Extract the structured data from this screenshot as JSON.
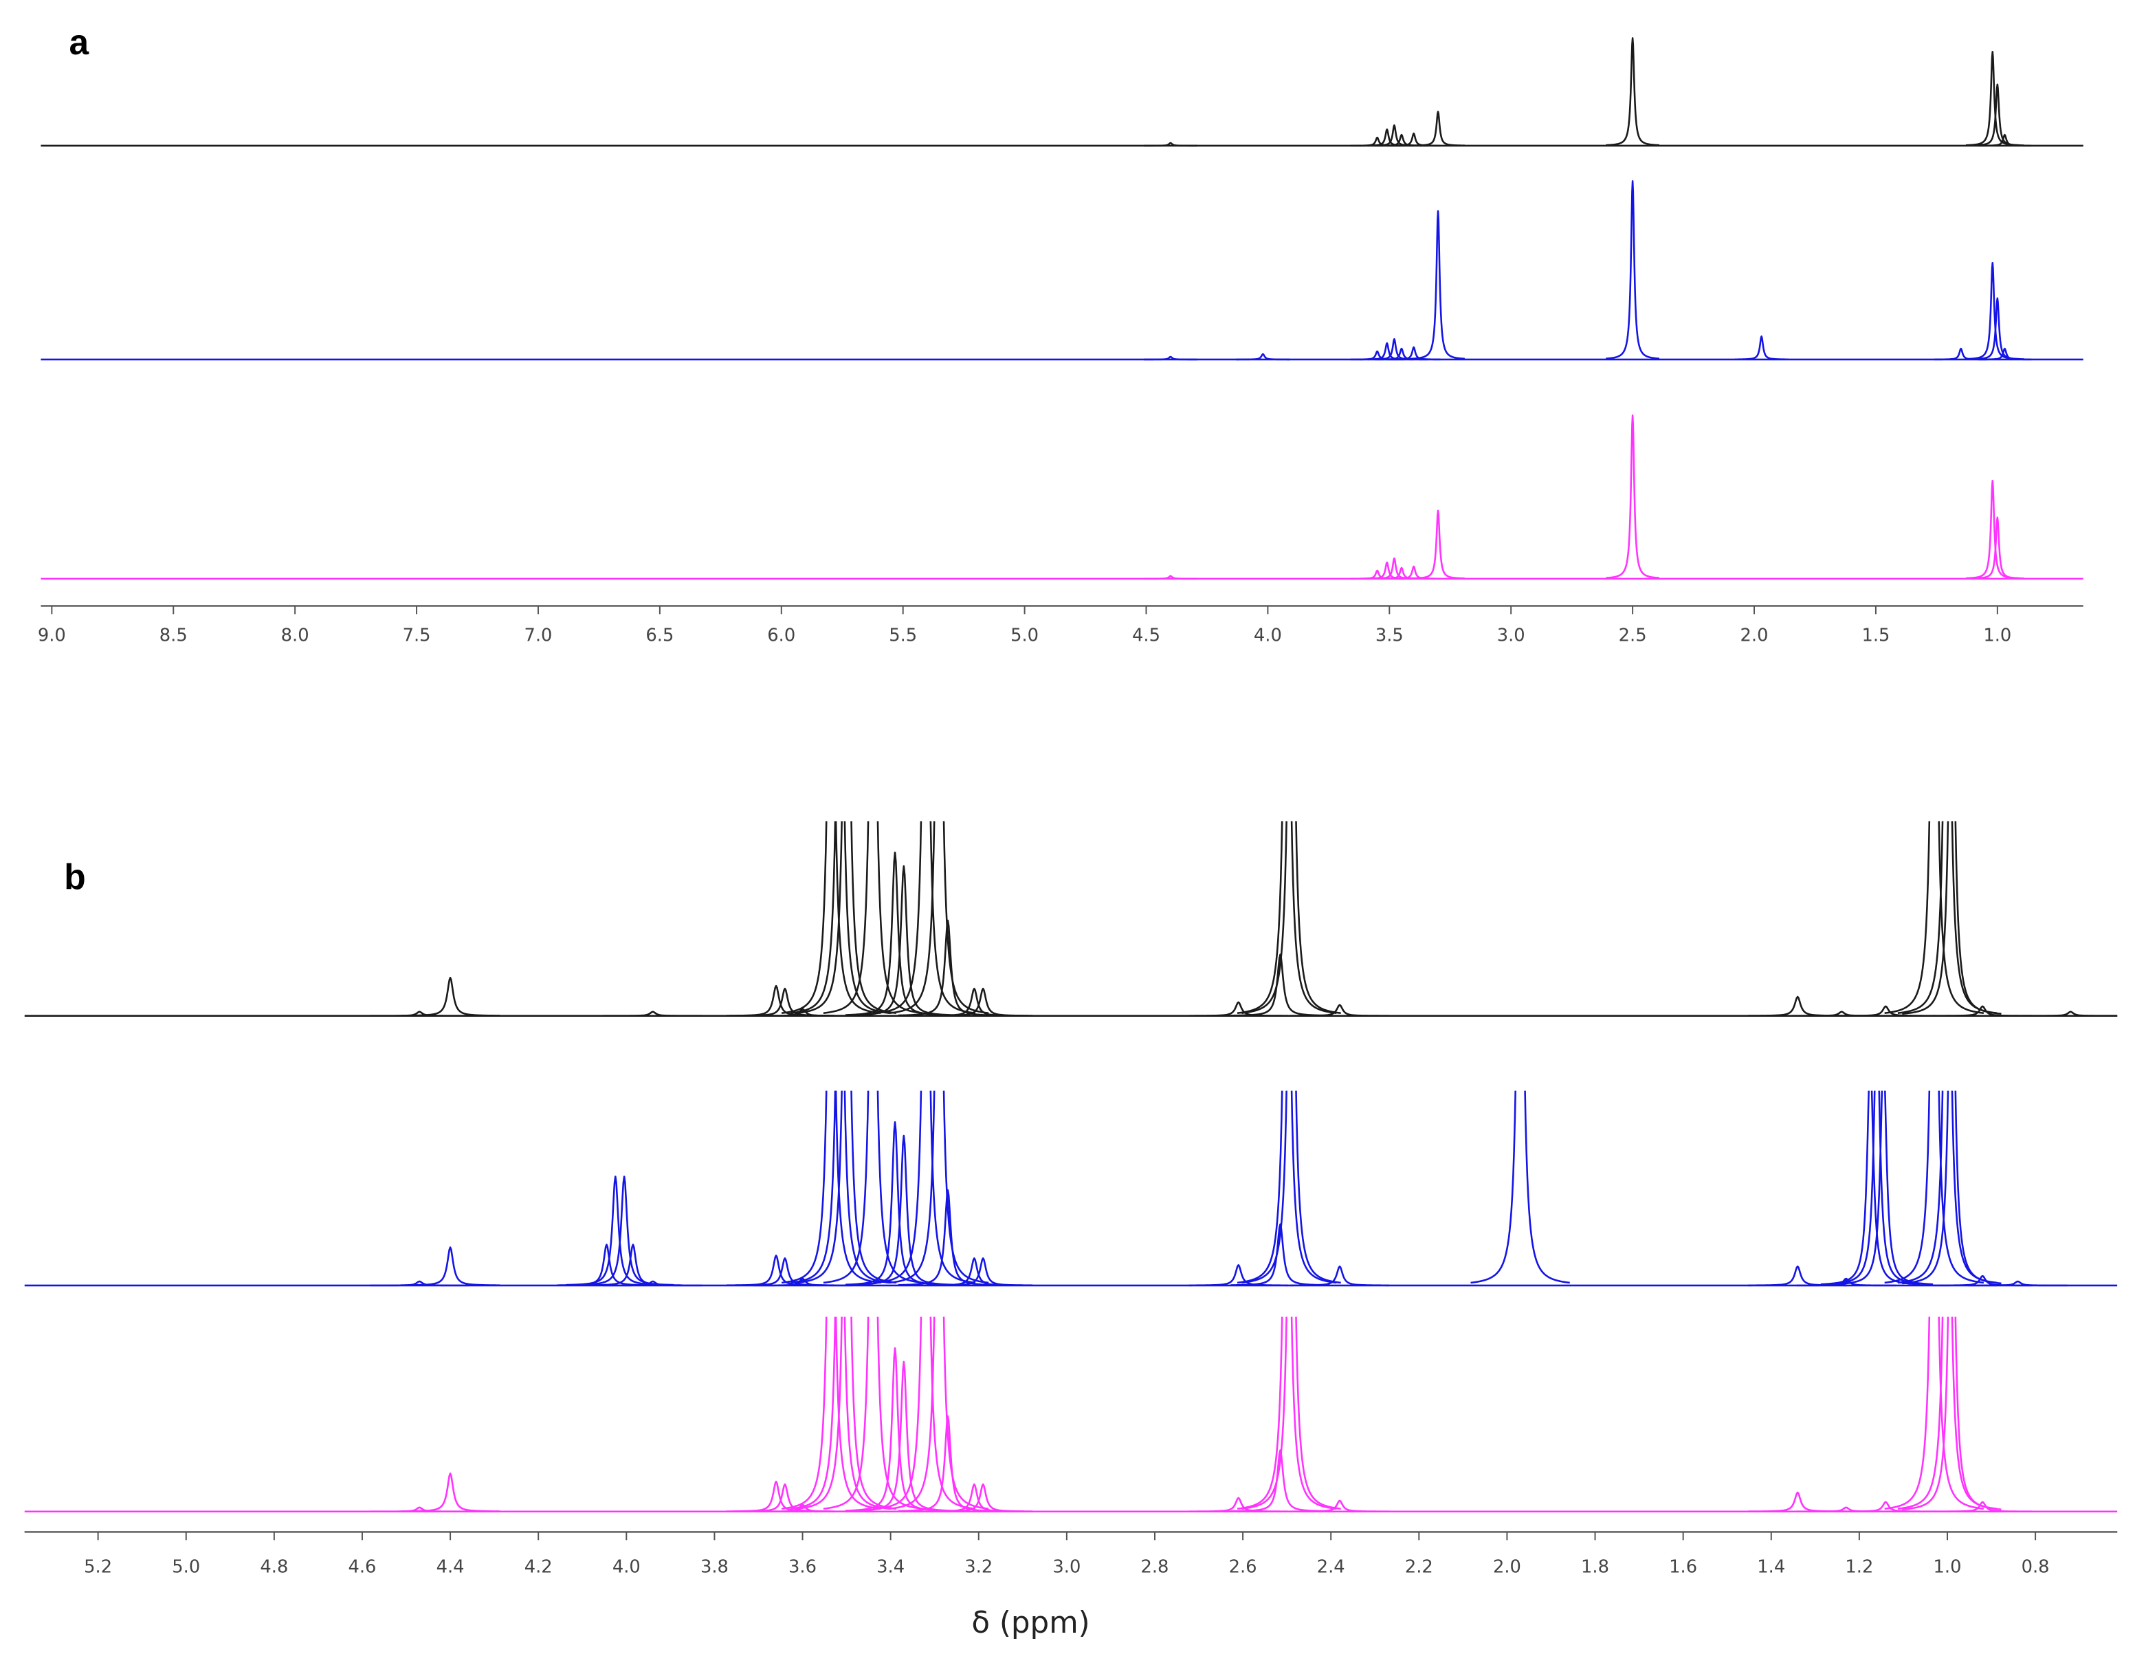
{
  "chart_data": [
    {
      "type": "spectrum",
      "label": "a",
      "xlim": [
        9.045,
        0.647
      ],
      "xticks": [
        {
          "value": 9,
          "label": "9.0"
        },
        8.5,
        {
          "value": 8,
          "label": "8.0"
        },
        7.5,
        {
          "value": 7,
          "label": "7.0"
        },
        6.5,
        {
          "value": 6,
          "label": "6.0"
        },
        5.5,
        {
          "value": 5,
          "label": "5.0"
        },
        4.5,
        {
          "value": 4,
          "label": "4.0"
        },
        3.5,
        {
          "value": 3,
          "label": "3.0"
        },
        2.5,
        {
          "value": 2,
          "label": "2.0"
        },
        1.5,
        {
          "value": 1,
          "label": "1.0"
        }
      ],
      "series": [
        {
          "color": "#1a1a1a",
          "x": [
            4.4,
            3.55,
            3.51,
            3.48,
            3.45,
            3.4,
            3.3,
            2.5,
            1.02,
            1.0,
            0.97
          ],
          "values": [
            2,
            6,
            12,
            15,
            8,
            9,
            25,
            79,
            69,
            45,
            8
          ]
        },
        {
          "color": "#1414e6",
          "x": [
            4.4,
            4.02,
            3.55,
            3.51,
            3.48,
            3.45,
            3.4,
            3.3,
            2.5,
            1.97,
            1.15,
            1.02,
            1.0,
            0.97
          ],
          "values": [
            2,
            4,
            6,
            12,
            15,
            8,
            9,
            109,
            131,
            17,
            8,
            71,
            45,
            8
          ]
        },
        {
          "color": "#ff33ff",
          "x": [
            4.4,
            3.55,
            3.51,
            3.48,
            3.45,
            3.4,
            3.3,
            2.5,
            1.02,
            1.0
          ],
          "values": [
            2,
            6,
            12,
            15,
            8,
            9,
            50,
            120,
            72,
            45
          ]
        }
      ]
    },
    {
      "type": "spectrum",
      "label": "b",
      "x_label": "δ (ppm)",
      "xlim": [
        5.367,
        0.614
      ],
      "xticks": [
        5.2,
        {
          "value": 5,
          "label": "5.0"
        },
        4.8,
        4.6,
        4.4,
        4.2,
        {
          "value": 4,
          "label": "4.0"
        },
        3.8,
        3.6,
        3.4,
        3.2,
        {
          "value": 3,
          "label": "3.0"
        },
        2.8,
        2.6,
        2.4,
        2.2,
        {
          "value": 2,
          "label": "2.0"
        },
        1.8,
        1.6,
        1.4,
        1.2,
        {
          "value": 1,
          "label": "1.0"
        },
        0.8
      ],
      "series": [
        {
          "color": "#1a1a1a",
          "x": [
            4.47,
            4.4,
            3.94,
            3.66,
            3.64,
            3.6,
            3.535,
            3.515,
            3.5,
            3.44,
            3.39,
            3.37,
            3.32,
            3.29,
            3.27,
            3.21,
            3.19,
            2.61,
            2.515,
            2.5,
            2.49,
            2.38,
            1.34,
            1.24,
            1.14,
            1.03,
            1.0,
            0.99,
            0.92,
            0.72
          ],
          "values": [
            3,
            28,
            3,
            22,
            20,
            5,
            400,
            400,
            400,
            400,
            120,
            110,
            400,
            400,
            70,
            20,
            20,
            10,
            45,
            400,
            400,
            8,
            14,
            3,
            7,
            400,
            400,
            300,
            7,
            3
          ]
        },
        {
          "color": "#1414e6",
          "x": [
            4.47,
            4.4,
            4.045,
            4.025,
            4.005,
            3.985,
            3.94,
            3.66,
            3.64,
            3.6,
            3.535,
            3.515,
            3.5,
            3.44,
            3.39,
            3.37,
            3.32,
            3.29,
            3.27,
            3.21,
            3.19,
            2.61,
            2.515,
            2.5,
            2.49,
            2.38,
            1.97,
            1.34,
            1.23,
            1.175,
            1.16,
            1.145,
            1.03,
            1.0,
            0.99,
            0.92,
            0.84
          ],
          "values": [
            3,
            28,
            30,
            80,
            80,
            30,
            3,
            22,
            20,
            5,
            400,
            400,
            400,
            400,
            120,
            110,
            400,
            400,
            70,
            20,
            20,
            15,
            45,
            400,
            400,
            14,
            400,
            14,
            5,
            170,
            200,
            170,
            400,
            400,
            300,
            7,
            3
          ]
        },
        {
          "color": "#ff33ff",
          "x": [
            4.47,
            4.4,
            3.66,
            3.64,
            3.6,
            3.535,
            3.515,
            3.5,
            3.44,
            3.39,
            3.37,
            3.32,
            3.29,
            3.27,
            3.21,
            3.19,
            2.61,
            2.515,
            2.5,
            2.49,
            2.38,
            1.34,
            1.23,
            1.14,
            1.03,
            1.0,
            0.99,
            0.92
          ],
          "values": [
            3,
            28,
            22,
            20,
            5,
            400,
            400,
            400,
            400,
            120,
            110,
            400,
            400,
            70,
            20,
            20,
            10,
            45,
            400,
            400,
            8,
            14,
            3,
            7,
            400,
            400,
            300,
            7
          ]
        }
      ]
    }
  ]
}
